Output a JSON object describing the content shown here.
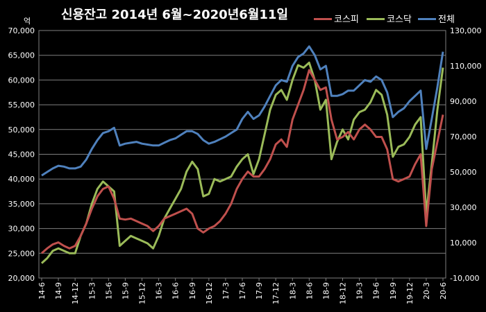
{
  "chart_data": {
    "type": "line",
    "title": "신용잔고  2014년 6월~2020년6월11일",
    "y_left_unit": "억",
    "ylim_left": [
      20000,
      70000
    ],
    "ylim_right": [
      -10000,
      130000
    ],
    "y_left_ticks": [
      "20,000",
      "25,000",
      "30,000",
      "35,000",
      "40,000",
      "45,000",
      "50,000",
      "55,000",
      "60,000",
      "65,000",
      "70,000"
    ],
    "y_right_ticks": [
      "-10,000",
      "10,000",
      "30,000",
      "50,000",
      "70,000",
      "90,000",
      "110,000",
      "130,000"
    ],
    "x_ticks": [
      "14-6",
      "14-9",
      "14-12",
      "15-3",
      "15-6",
      "15-9",
      "15-12",
      "16-3",
      "16-6",
      "16-9",
      "16-12",
      "17-3",
      "17-6",
      "17-9",
      "17-12",
      "18-3",
      "18-6",
      "18-9",
      "18-12",
      "19-3",
      "19-6",
      "19-9",
      "19-12",
      "20-3",
      "20-6"
    ],
    "grid": true,
    "legend_position": "top-right",
    "colors": {
      "kospi": "#c0504d",
      "kosdaq": "#9bbb59",
      "total": "#4f81bd",
      "grid": "#7f7f7f",
      "plot_bg": "#000000"
    },
    "series": [
      {
        "name": "코스피",
        "axis": "left",
        "color_key": "kospi",
        "x": [
          "14-6",
          "14-7",
          "14-8",
          "14-9",
          "14-10",
          "14-11",
          "14-12",
          "15-1",
          "15-2",
          "15-3",
          "15-4",
          "15-5",
          "15-6",
          "15-7",
          "15-8",
          "15-9",
          "15-10",
          "15-11",
          "15-12",
          "16-1",
          "16-2",
          "16-3",
          "16-4",
          "16-5",
          "16-6",
          "16-7",
          "16-8",
          "16-9",
          "16-10",
          "16-11",
          "16-12",
          "17-1",
          "17-2",
          "17-3",
          "17-4",
          "17-5",
          "17-6",
          "17-7",
          "17-8",
          "17-9",
          "17-10",
          "17-11",
          "17-12",
          "18-1",
          "18-2",
          "18-3",
          "18-4",
          "18-5",
          "18-6",
          "18-7",
          "18-8",
          "18-9",
          "18-10",
          "18-11",
          "18-12",
          "19-1",
          "19-2",
          "19-3",
          "19-4",
          "19-5",
          "19-6",
          "19-7",
          "19-8",
          "19-9",
          "19-10",
          "19-11",
          "19-12",
          "20-1",
          "20-2",
          "20-3",
          "20-4",
          "20-5",
          "20-6"
        ],
        "values": [
          25000,
          26000,
          26800,
          27200,
          26500,
          26000,
          26500,
          28500,
          31000,
          34000,
          36500,
          38000,
          38500,
          36000,
          32000,
          31800,
          32000,
          31500,
          31000,
          30500,
          29500,
          30500,
          32000,
          32500,
          33000,
          33500,
          34000,
          33000,
          30000,
          29200,
          30000,
          30500,
          31500,
          33000,
          35000,
          38000,
          40000,
          41500,
          40500,
          40500,
          42000,
          44000,
          47000,
          48000,
          46500,
          52000,
          55000,
          58000,
          62000,
          60000,
          58000,
          58500,
          52000,
          48000,
          48500,
          49500,
          48000,
          50000,
          51000,
          50000,
          48500,
          48500,
          46000,
          40000,
          39500,
          40000,
          40500,
          43000,
          45000,
          30500,
          42000,
          47500,
          53000
        ]
      },
      {
        "name": "코스닥",
        "axis": "left",
        "color_key": "kosdaq",
        "x": [
          "14-6",
          "14-7",
          "14-8",
          "14-9",
          "14-10",
          "14-11",
          "14-12",
          "15-1",
          "15-2",
          "15-3",
          "15-4",
          "15-5",
          "15-6",
          "15-7",
          "15-8",
          "15-9",
          "15-10",
          "15-11",
          "15-12",
          "16-1",
          "16-2",
          "16-3",
          "16-4",
          "16-5",
          "16-6",
          "16-7",
          "16-8",
          "16-9",
          "16-10",
          "16-11",
          "16-12",
          "17-1",
          "17-2",
          "17-3",
          "17-4",
          "17-5",
          "17-6",
          "17-7",
          "17-8",
          "17-9",
          "17-10",
          "17-11",
          "17-12",
          "18-1",
          "18-2",
          "18-3",
          "18-4",
          "18-5",
          "18-6",
          "18-7",
          "18-8",
          "18-9",
          "18-10",
          "18-11",
          "18-12",
          "19-1",
          "19-2",
          "19-3",
          "19-4",
          "19-5",
          "19-6",
          "19-7",
          "19-8",
          "19-9",
          "19-10",
          "19-11",
          "19-12",
          "20-1",
          "20-2",
          "20-3",
          "20-4",
          "20-5",
          "20-6"
        ],
        "values": [
          23000,
          24000,
          25500,
          26000,
          25500,
          25000,
          25000,
          28500,
          31000,
          35000,
          38000,
          39500,
          38500,
          37500,
          26500,
          27500,
          28500,
          28000,
          27500,
          27000,
          26000,
          28500,
          32000,
          34000,
          36000,
          38000,
          41500,
          43500,
          42000,
          36500,
          37000,
          40000,
          39500,
          40000,
          40500,
          42500,
          44000,
          45000,
          41000,
          44000,
          49000,
          54000,
          57000,
          58000,
          56000,
          60000,
          63000,
          62500,
          63500,
          60000,
          54000,
          56000,
          44000,
          47500,
          50000,
          48000,
          52000,
          53500,
          54000,
          55500,
          58000,
          57000,
          53000,
          44500,
          46500,
          47000,
          48500,
          51000,
          52500,
          33000,
          43000,
          54000,
          62500
        ]
      },
      {
        "name": "전체",
        "axis": "right",
        "color_key": "total",
        "x": [
          "14-6",
          "14-7",
          "14-8",
          "14-9",
          "14-10",
          "14-11",
          "14-12",
          "15-1",
          "15-2",
          "15-3",
          "15-4",
          "15-5",
          "15-6",
          "15-7",
          "15-8",
          "15-9",
          "15-10",
          "15-11",
          "15-12",
          "16-1",
          "16-2",
          "16-3",
          "16-4",
          "16-5",
          "16-6",
          "16-7",
          "16-8",
          "16-9",
          "16-10",
          "16-11",
          "16-12",
          "17-1",
          "17-2",
          "17-3",
          "17-4",
          "17-5",
          "17-6",
          "17-7",
          "17-8",
          "17-9",
          "17-10",
          "17-11",
          "17-12",
          "18-1",
          "18-2",
          "18-3",
          "18-4",
          "18-5",
          "18-6",
          "18-7",
          "18-8",
          "18-9",
          "18-10",
          "18-11",
          "18-12",
          "19-1",
          "19-2",
          "19-3",
          "19-4",
          "19-5",
          "19-6",
          "19-7",
          "19-8",
          "19-9",
          "19-10",
          "19-11",
          "19-12",
          "20-1",
          "20-2",
          "20-3",
          "20-4",
          "20-5",
          "20-6"
        ],
        "values": [
          48000,
          50000,
          52000,
          53500,
          53000,
          52000,
          52000,
          53000,
          57000,
          63000,
          68000,
          72000,
          73000,
          75000,
          65000,
          66000,
          66500,
          67000,
          66000,
          65500,
          65000,
          65000,
          66500,
          68000,
          69000,
          71000,
          73000,
          73000,
          71500,
          68000,
          66000,
          67000,
          68500,
          70000,
          72000,
          74000,
          80000,
          84000,
          80000,
          82000,
          87000,
          93000,
          99000,
          102000,
          101000,
          110000,
          115000,
          117000,
          121000,
          116000,
          108000,
          110000,
          93000,
          93000,
          94000,
          96000,
          96000,
          99000,
          102000,
          101000,
          104000,
          102000,
          95000,
          81000,
          84000,
          86000,
          90000,
          93000,
          96000,
          63000,
          80000,
          98000,
          118000
        ]
      }
    ]
  }
}
